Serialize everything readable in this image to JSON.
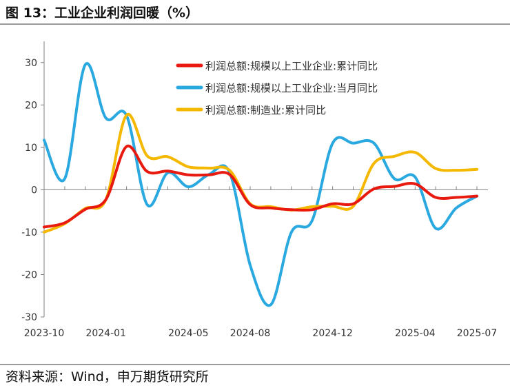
{
  "title": "图 13：工业企业利润回暖（%）",
  "source": "资料来源：Wind，申万期货研究所",
  "chart_data": {
    "type": "line",
    "x": [
      "2023-10",
      "2023-11",
      "2023-12",
      "2024-01",
      "2024-02",
      "2024-03",
      "2024-04",
      "2024-05",
      "2024-06",
      "2024-07",
      "2024-08",
      "2024-09",
      "2024-10",
      "2024-11",
      "2024-12",
      "2025-01",
      "2025-02",
      "2025-03",
      "2025-04",
      "2025-05",
      "2025-06",
      "2025-07"
    ],
    "x_tick_labels": [
      "2023-10",
      "2024-01",
      "2024-05",
      "2024-08",
      "2024-12",
      "2025-04",
      "2025-07"
    ],
    "y_ticks": [
      30,
      20,
      10,
      0,
      -10,
      -20,
      -30
    ],
    "ylim": [
      -30,
      35
    ],
    "grid": false,
    "legend_position": "top-right",
    "series": [
      {
        "name": "利润总额:规模以上工业企业:累计同比",
        "color": "#e8190e",
        "values": [
          -8.8,
          -7.8,
          -4.6,
          -2.3,
          10.2,
          4.3,
          4.4,
          3.5,
          3.5,
          3.6,
          -3.5,
          -4.3,
          -4.7,
          -4.7,
          -3.3,
          -3.3,
          0.2,
          0.8,
          1.4,
          -1.8,
          -1.8,
          -1.5
        ]
      },
      {
        "name": "利润总额:规模以上工业企业:当月同比",
        "color": "#2aa8e0",
        "values": [
          11.7,
          2.6,
          29.5,
          16.9,
          17.5,
          -3.5,
          4.0,
          0.7,
          3.6,
          4.1,
          -17.8,
          -27.1,
          -10.0,
          -7.3,
          11.0,
          11.0,
          11.0,
          2.6,
          3.0,
          -9.1,
          -4.3,
          -1.5
        ]
      },
      {
        "name": "利润总额:制造业:累计同比",
        "color": "#f5b800",
        "values": [
          -10.0,
          -8.0,
          -4.4,
          -2.3,
          17.6,
          8.0,
          7.8,
          5.4,
          5.1,
          4.6,
          -3.3,
          -4.0,
          -4.8,
          -4.0,
          -3.9,
          -3.9,
          6.2,
          7.9,
          8.8,
          5.0,
          4.6,
          4.8
        ]
      }
    ]
  }
}
